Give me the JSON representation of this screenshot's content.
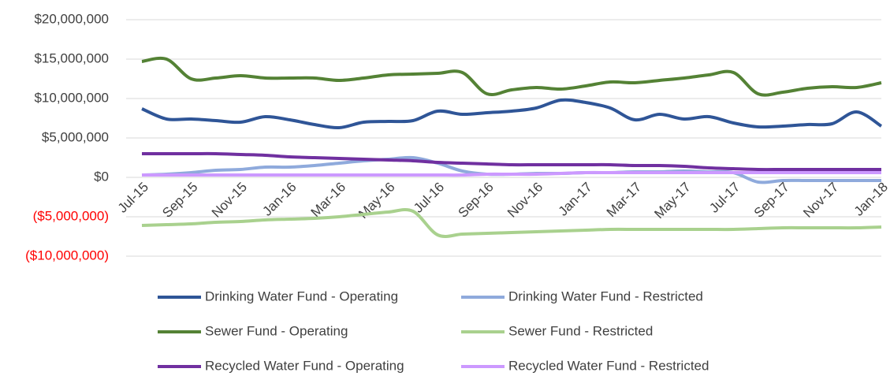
{
  "chart_data": {
    "type": "line",
    "categories": [
      "Jul-15",
      null,
      "Sep-15",
      null,
      "Nov-15",
      null,
      "Jan-16",
      null,
      "Mar-16",
      null,
      "May-16",
      null,
      "Jul-16",
      null,
      "Sep-16",
      null,
      "Nov-16",
      null,
      "Jan-17",
      null,
      "Mar-17",
      null,
      "May-17",
      null,
      "Jul-17",
      null,
      "Sep-17",
      null,
      "Nov-17",
      null,
      "Jan-18"
    ],
    "ylim": [
      -10000000,
      20000000
    ],
    "yticks": [
      {
        "value": -10000000,
        "label": "($10,000,000)"
      },
      {
        "value": -5000000,
        "label": "($5,000,000)"
      },
      {
        "value": 0,
        "label": "$0"
      },
      {
        "value": 5000000,
        "label": "$5,000,000"
      },
      {
        "value": 10000000,
        "label": "$10,000,000"
      },
      {
        "value": 15000000,
        "label": "$15,000,000"
      },
      {
        "value": 20000000,
        "label": "$20,000,000"
      }
    ],
    "negative_tick_color": "#ff0000",
    "grid": true,
    "legend": "bottom",
    "series": [
      {
        "name": "Drinking Water Fund - Operating",
        "color": "#2f5597",
        "values": [
          8700000,
          7400000,
          7400000,
          7200000,
          7000000,
          7700000,
          7300000,
          6700000,
          6300000,
          7000000,
          7100000,
          7200000,
          8400000,
          8000000,
          8200000,
          8400000,
          8800000,
          9800000,
          9500000,
          8800000,
          7300000,
          8000000,
          7400000,
          7700000,
          6900000,
          6400000,
          6500000,
          6700000,
          6800000,
          8300000,
          6500000
        ]
      },
      {
        "name": "Drinking Water Fund - Restricted",
        "color": "#8faadc",
        "values": [
          300000,
          400000,
          600000,
          900000,
          1000000,
          1300000,
          1300000,
          1500000,
          1800000,
          2100000,
          2300000,
          2500000,
          1800000,
          800000,
          400000,
          400000,
          500000,
          500000,
          600000,
          600000,
          700000,
          700000,
          800000,
          700000,
          600000,
          -600000,
          -400000,
          -400000,
          -400000,
          -400000,
          -400000
        ]
      },
      {
        "name": "Sewer Fund - Operating",
        "color": "#548235",
        "values": [
          14700000,
          15000000,
          12500000,
          12600000,
          12900000,
          12600000,
          12600000,
          12600000,
          12300000,
          12600000,
          13000000,
          13100000,
          13200000,
          13300000,
          10600000,
          11100000,
          11400000,
          11200000,
          11600000,
          12100000,
          12000000,
          12300000,
          12600000,
          13000000,
          13300000,
          10600000,
          10800000,
          11300000,
          11500000,
          11400000,
          12000000
        ]
      },
      {
        "name": "Sewer Fund - Restricted",
        "color": "#a9d18e",
        "values": [
          -6100000,
          -6000000,
          -5900000,
          -5700000,
          -5600000,
          -5400000,
          -5300000,
          -5200000,
          -5000000,
          -4700000,
          -4400000,
          -4300000,
          -7300000,
          -7200000,
          -7100000,
          -7000000,
          -6900000,
          -6800000,
          -6700000,
          -6600000,
          -6600000,
          -6600000,
          -6600000,
          -6600000,
          -6600000,
          -6500000,
          -6400000,
          -6400000,
          -6400000,
          -6400000,
          -6300000
        ]
      },
      {
        "name": "Recycled Water Fund - Operating",
        "color": "#7030a0",
        "values": [
          3000000,
          3000000,
          3000000,
          3000000,
          2900000,
          2800000,
          2600000,
          2500000,
          2400000,
          2300000,
          2200000,
          2100000,
          1900000,
          1800000,
          1700000,
          1600000,
          1600000,
          1600000,
          1600000,
          1600000,
          1500000,
          1500000,
          1400000,
          1200000,
          1100000,
          1000000,
          1000000,
          1000000,
          1000000,
          1000000,
          1000000
        ]
      },
      {
        "name": "Recycled Water Fund - Restricted",
        "color": "#cc99ff",
        "values": [
          300000,
          300000,
          300000,
          300000,
          300000,
          300000,
          300000,
          300000,
          300000,
          300000,
          300000,
          300000,
          300000,
          300000,
          400000,
          400000,
          400000,
          500000,
          600000,
          600000,
          600000,
          600000,
          600000,
          600000,
          600000,
          600000,
          600000,
          600000,
          600000,
          600000,
          600000
        ]
      }
    ]
  }
}
